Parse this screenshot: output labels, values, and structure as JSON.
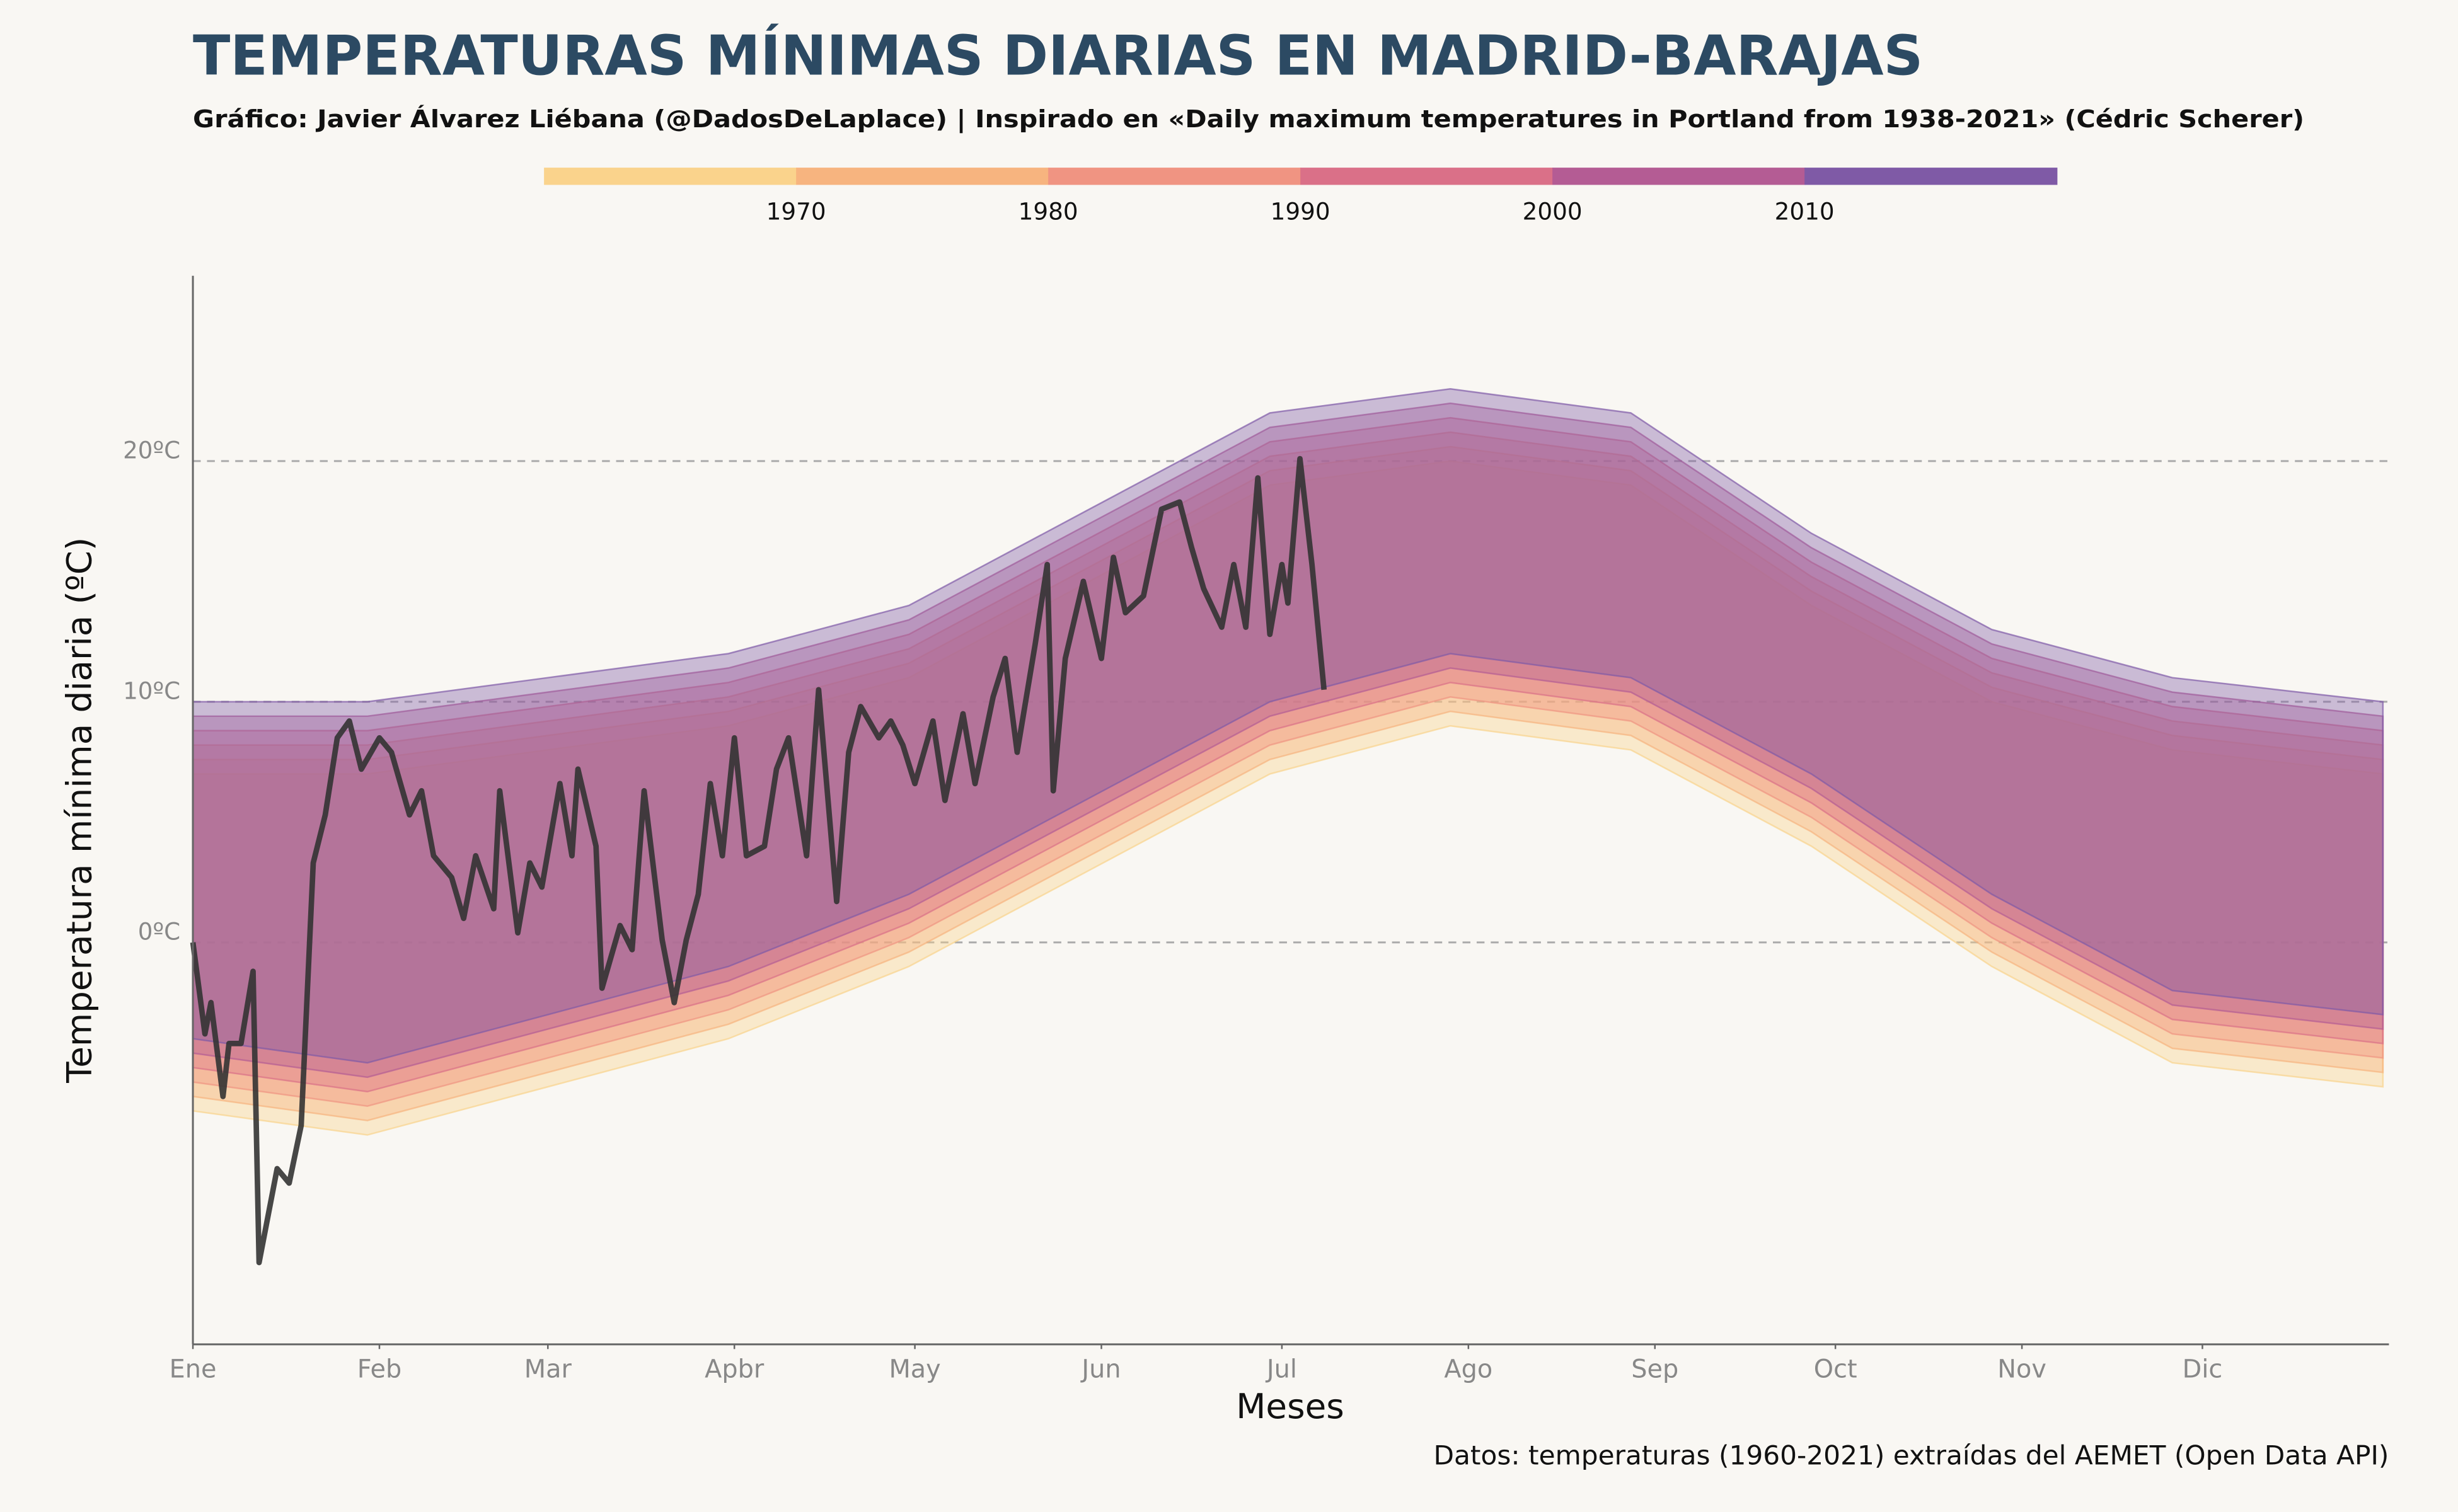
{
  "chart_data": {
    "type": "range-area",
    "title": "TEMPERATURAS MÍNIMAS DIARIAS EN MADRID-BARAJAS",
    "subtitle": "Gráfico: Javier Álvarez Liébana (@DadosDeLaplace) | Inspirado en «Daily maximum temperatures in Portland from 1938-2021» (Cédric Scherer)",
    "x_label": "Meses",
    "y_label": "Temperatura mínima diaria (ºC)",
    "source": "Datos: temperaturas (1960-2021) extraídas del AEMET (Open Data API)",
    "legend": {
      "lim": [
        1960,
        2020
      ],
      "ticks": [
        1970,
        1980,
        1990,
        2000,
        2010
      ],
      "colors": [
        "#fad38c",
        "#f7b47f",
        "#f09482",
        "#da7088",
        "#b45c94",
        "#7f5aa6"
      ]
    },
    "xlim": [
      1,
      366
    ],
    "xticks": [
      {
        "value": 1,
        "label": "Ene"
      },
      {
        "value": 32,
        "label": "Feb"
      },
      {
        "value": 60,
        "label": "Mar"
      },
      {
        "value": 91,
        "label": "Apbr"
      },
      {
        "value": 121,
        "label": "May"
      },
      {
        "value": 152,
        "label": "Jun"
      },
      {
        "value": 182,
        "label": "Jul"
      },
      {
        "value": 213,
        "label": "Ago"
      },
      {
        "value": 244,
        "label": "Sep"
      },
      {
        "value": 274,
        "label": "Oct"
      },
      {
        "value": 305,
        "label": "Nov"
      },
      {
        "value": 335,
        "label": "Dic"
      }
    ],
    "ylim": [
      -16.7,
      27.7
    ],
    "yticks": [
      {
        "value": 0,
        "label": "0ºC"
      },
      {
        "value": 10,
        "label": "10ºC"
      },
      {
        "value": 20,
        "label": "20ºC"
      }
    ],
    "grid": true,
    "x": [
      1,
      30,
      60,
      90,
      120,
      150,
      180,
      210,
      240,
      270,
      300,
      330,
      365
    ],
    "series": [
      {
        "color": "#fad38c",
        "low": [
          -7,
          -8,
          -6,
          -4,
          -1,
          3,
          7,
          9,
          8,
          4,
          -1,
          -5,
          -6
        ],
        "high": [
          7,
          7,
          8,
          9,
          11,
          15,
          19,
          20,
          19,
          14,
          10,
          8,
          7
        ]
      },
      {
        "color": "#f7b47f",
        "low": [
          -6.4,
          -7.4,
          -5.4,
          -3.4,
          -0.4,
          3.6,
          7.6,
          9.6,
          8.6,
          4.6,
          -0.4,
          -4.4,
          -5.4
        ],
        "high": [
          7.6,
          7.6,
          8.6,
          9.6,
          11.6,
          15.6,
          19.6,
          20.6,
          19.6,
          14.6,
          10.6,
          8.6,
          7.6
        ]
      },
      {
        "color": "#f09482",
        "low": [
          -5.8,
          -6.8,
          -4.8,
          -2.8,
          0.2,
          4.2,
          8.2,
          10.2,
          9.2,
          5.2,
          0.2,
          -3.8,
          -4.8
        ],
        "high": [
          8.2,
          8.2,
          9.2,
          10.2,
          12.2,
          16.2,
          20.2,
          21.2,
          20.2,
          15.2,
          11.2,
          9.2,
          8.2
        ]
      },
      {
        "color": "#da7088",
        "low": [
          -5.2,
          -6.2,
          -4.2,
          -2.2,
          0.8,
          4.8,
          8.8,
          10.8,
          9.8,
          5.8,
          0.8,
          -3.2,
          -4.2
        ],
        "high": [
          8.8,
          8.8,
          9.8,
          10.8,
          12.8,
          16.8,
          20.8,
          21.8,
          20.8,
          15.8,
          11.8,
          9.8,
          8.8
        ]
      },
      {
        "color": "#b45c94",
        "low": [
          -4.6,
          -5.6,
          -3.6,
          -1.6,
          1.4,
          5.4,
          9.4,
          11.4,
          10.4,
          6.4,
          1.4,
          -2.6,
          -3.6
        ],
        "high": [
          9.4,
          9.4,
          10.4,
          11.4,
          13.4,
          17.4,
          21.4,
          22.4,
          21.4,
          16.4,
          12.4,
          10.4,
          9.4
        ]
      },
      {
        "color": "#7f5aa6",
        "low": [
          -4,
          -5,
          -3,
          -1,
          2,
          6,
          10,
          12,
          11,
          7,
          2,
          -2,
          -3
        ],
        "high": [
          10,
          10,
          11,
          12,
          14,
          18,
          22,
          23,
          22,
          17,
          13,
          11,
          10
        ]
      }
    ],
    "highlight": {
      "color": "#333333",
      "x": [
        1,
        3,
        4,
        6,
        7,
        9,
        11,
        12,
        15,
        17,
        19,
        21,
        23,
        25,
        27,
        29,
        32,
        34,
        37,
        39,
        41,
        44,
        46,
        48,
        51,
        52,
        55,
        57,
        59,
        62,
        64,
        65,
        68,
        69,
        72,
        74,
        76,
        79,
        81,
        83,
        85,
        87,
        89,
        91,
        93,
        96,
        98,
        100,
        103,
        105,
        108,
        110,
        112,
        115,
        117,
        119,
        121,
        124,
        126,
        129,
        131,
        134,
        136,
        138,
        141,
        143,
        144,
        146,
        149,
        152,
        154,
        156,
        159,
        162,
        165,
        167,
        169,
        172,
        174,
        176,
        178,
        180,
        182,
        183,
        185,
        187,
        189
      ],
      "values": [
        0,
        -3.8,
        -2.5,
        -6.4,
        -4.2,
        -4.2,
        -1.2,
        -13.3,
        -9.4,
        -10,
        -7.6,
        3.3,
        5.3,
        8.5,
        9.2,
        7.2,
        8.5,
        7.9,
        5.3,
        6.3,
        3.6,
        2.7,
        1,
        3.6,
        1.4,
        6.3,
        0.4,
        3.3,
        2.3,
        6.6,
        3.6,
        7.2,
        4,
        -1.9,
        0.7,
        -0.3,
        6.3,
        0.1,
        -2.5,
        0.1,
        2,
        6.6,
        3.6,
        8.5,
        3.6,
        4,
        7.2,
        8.5,
        3.6,
        10.5,
        1.7,
        7.9,
        9.8,
        8.5,
        9.2,
        8.2,
        6.6,
        9.2,
        5.9,
        9.5,
        6.6,
        10.2,
        11.8,
        7.9,
        12.4,
        15.7,
        6.3,
        11.8,
        15,
        11.8,
        16,
        13.7,
        14.4,
        18,
        18.3,
        16.4,
        14.7,
        13.1,
        15.7,
        13.1,
        19.3,
        12.8,
        15.7,
        14.1,
        20.1,
        15.7,
        10.5
      ]
    }
  }
}
